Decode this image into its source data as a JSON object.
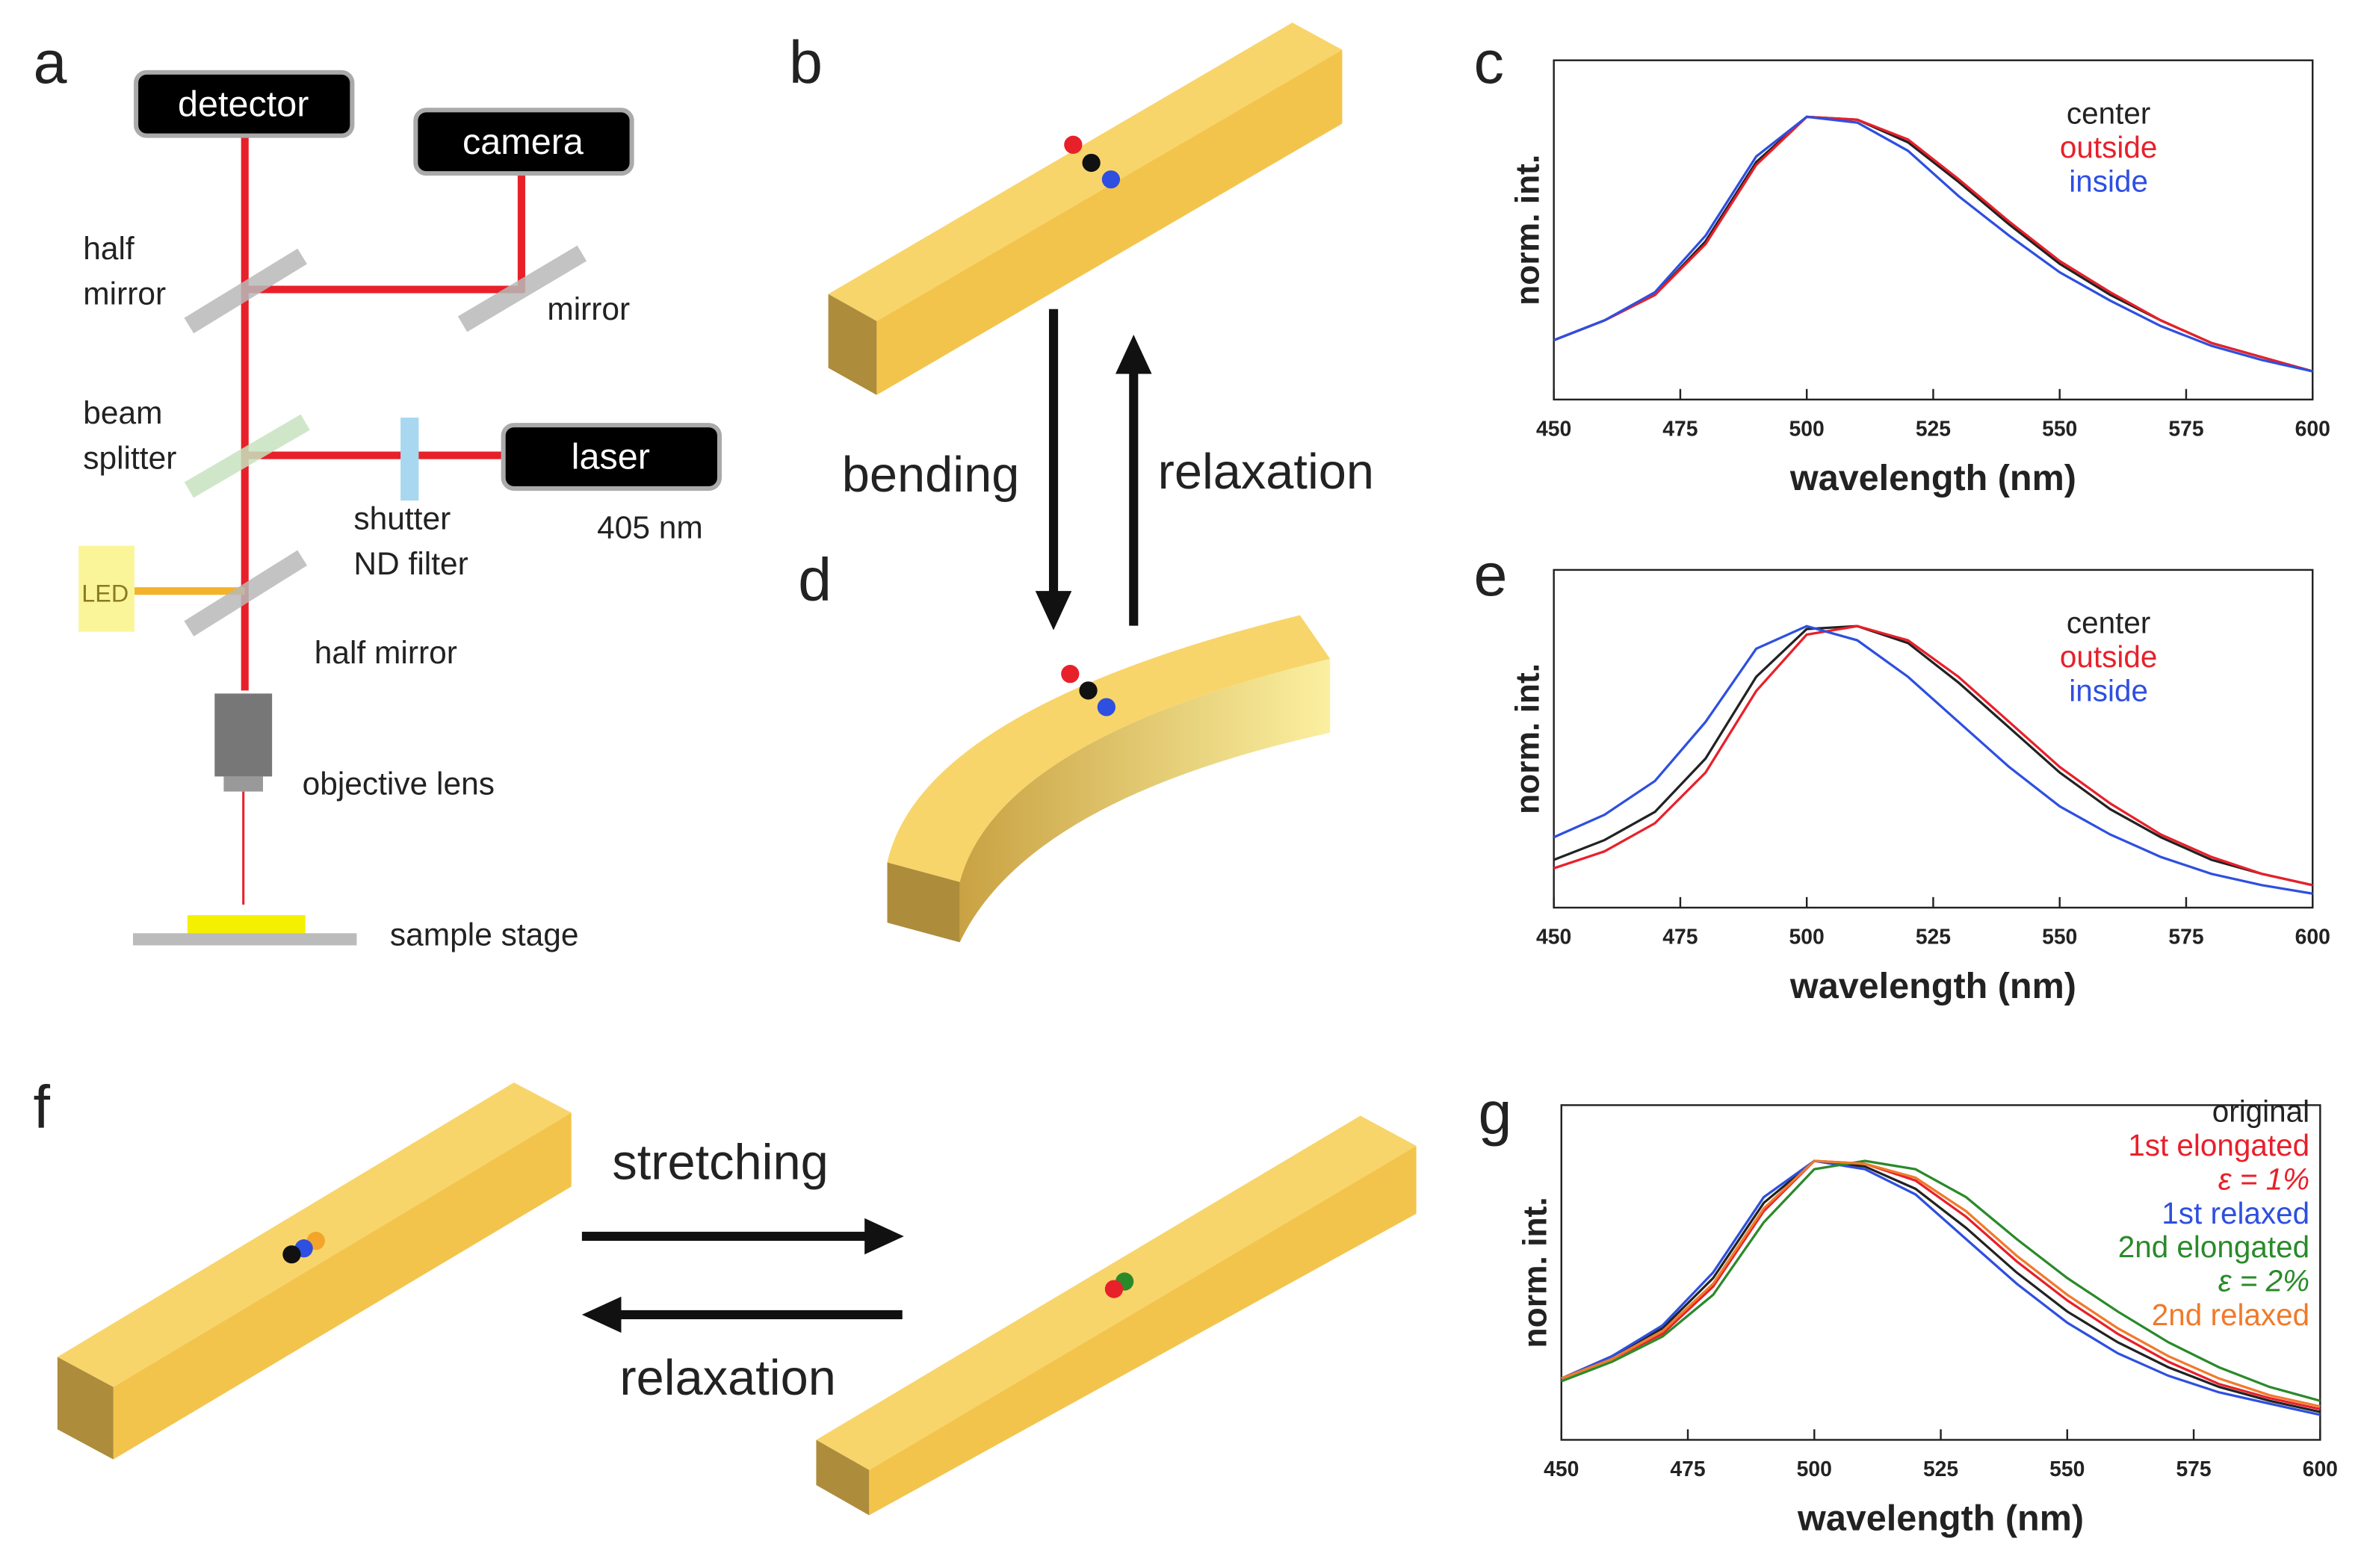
{
  "panel_letters": [
    "a",
    "b",
    "c",
    "d",
    "e",
    "f",
    "g"
  ],
  "panel_a": {
    "boxes": [
      "detector",
      "camera",
      "laser"
    ],
    "labels": [
      "half",
      "mirror",
      "mirror",
      "beam",
      "splitter",
      "shutter",
      "ND filter",
      "405 nm",
      "half mirror",
      "objective lens",
      "sample stage",
      "LED"
    ]
  },
  "panel_bd": {
    "arrows": [
      "bending",
      "relaxation"
    ]
  },
  "panel_f": {
    "arrows": [
      "stretching",
      "relaxation"
    ]
  },
  "chart_data": [
    {
      "type": "line",
      "x_label": "wavelength (nm)",
      "y_label": "norm. int.",
      "x": [
        450,
        460,
        470,
        480,
        490,
        500,
        510,
        520,
        530,
        540,
        550,
        560,
        570,
        580,
        590,
        600
      ],
      "xlim": [
        450,
        600
      ],
      "xticks": [
        450,
        475,
        500,
        525,
        550,
        575,
        600
      ],
      "ylim": [
        0,
        1.2
      ],
      "series": [
        {
          "name": "center",
          "color": "#222222",
          "values": [
            0.21,
            0.28,
            0.37,
            0.56,
            0.84,
            1.0,
            0.99,
            0.91,
            0.77,
            0.62,
            0.48,
            0.37,
            0.28,
            0.2,
            0.15,
            0.1
          ]
        },
        {
          "name": "outside",
          "color": "#e8202a",
          "values": [
            0.21,
            0.28,
            0.37,
            0.55,
            0.83,
            1.0,
            0.99,
            0.92,
            0.78,
            0.63,
            0.49,
            0.38,
            0.28,
            0.2,
            0.15,
            0.1
          ]
        },
        {
          "name": "inside",
          "color": "#2e4fe0",
          "values": [
            0.21,
            0.28,
            0.38,
            0.58,
            0.86,
            1.0,
            0.98,
            0.88,
            0.72,
            0.58,
            0.45,
            0.35,
            0.26,
            0.19,
            0.14,
            0.1
          ]
        }
      ]
    },
    {
      "type": "line",
      "x_label": "wavelength (nm)",
      "y_label": "norm. int.",
      "x": [
        450,
        460,
        470,
        480,
        490,
        500,
        510,
        520,
        530,
        540,
        550,
        560,
        570,
        580,
        590,
        600
      ],
      "xlim": [
        450,
        600
      ],
      "xticks": [
        450,
        475,
        500,
        525,
        550,
        575,
        600
      ],
      "ylim": [
        0,
        1.2
      ],
      "series": [
        {
          "name": "center",
          "color": "#222222",
          "values": [
            0.17,
            0.24,
            0.34,
            0.53,
            0.82,
            0.99,
            1.0,
            0.94,
            0.8,
            0.64,
            0.48,
            0.35,
            0.25,
            0.17,
            0.12,
            0.08
          ]
        },
        {
          "name": "outside",
          "color": "#e8202a",
          "values": [
            0.14,
            0.2,
            0.3,
            0.48,
            0.77,
            0.97,
            1.0,
            0.95,
            0.82,
            0.66,
            0.5,
            0.37,
            0.26,
            0.18,
            0.12,
            0.08
          ]
        },
        {
          "name": "inside",
          "color": "#2e4fe0",
          "values": [
            0.25,
            0.33,
            0.45,
            0.66,
            0.92,
            1.0,
            0.95,
            0.82,
            0.66,
            0.5,
            0.36,
            0.26,
            0.18,
            0.12,
            0.08,
            0.05
          ]
        }
      ]
    },
    {
      "type": "line",
      "x_label": "wavelength (nm)",
      "y_label": "norm. int.",
      "x": [
        450,
        460,
        470,
        480,
        490,
        500,
        510,
        520,
        530,
        540,
        550,
        560,
        570,
        580,
        590,
        600
      ],
      "xlim": [
        450,
        600
      ],
      "xticks": [
        450,
        475,
        500,
        525,
        550,
        575,
        600
      ],
      "ylim": [
        0,
        1.2
      ],
      "series": [
        {
          "name": "original",
          "color": "#222222",
          "values": [
            0.22,
            0.3,
            0.4,
            0.58,
            0.85,
            1.0,
            0.98,
            0.9,
            0.76,
            0.6,
            0.46,
            0.35,
            0.26,
            0.19,
            0.14,
            0.1
          ]
        },
        {
          "name": "1st elongated",
          "color": "#e8202a",
          "values": [
            0.22,
            0.29,
            0.38,
            0.55,
            0.82,
            1.0,
            0.99,
            0.93,
            0.8,
            0.64,
            0.5,
            0.38,
            0.28,
            0.2,
            0.15,
            0.11
          ]
        },
        {
          "name": "1st relaxed",
          "color": "#2e4fe0",
          "values": [
            0.22,
            0.3,
            0.41,
            0.6,
            0.87,
            1.0,
            0.97,
            0.88,
            0.72,
            0.56,
            0.42,
            0.31,
            0.23,
            0.17,
            0.13,
            0.09
          ]
        },
        {
          "name": "2nd elongated",
          "color": "#2a8a2a",
          "values": [
            0.21,
            0.28,
            0.37,
            0.52,
            0.78,
            0.97,
            1.0,
            0.97,
            0.87,
            0.72,
            0.58,
            0.46,
            0.35,
            0.26,
            0.19,
            0.14
          ]
        },
        {
          "name": "2nd relaxed",
          "color": "#f07a2a",
          "values": [
            0.22,
            0.29,
            0.39,
            0.56,
            0.83,
            1.0,
            0.99,
            0.94,
            0.82,
            0.66,
            0.52,
            0.4,
            0.3,
            0.22,
            0.16,
            0.12
          ]
        }
      ],
      "legend_notes": [
        "ε = 1%",
        "ε = 2%"
      ]
    }
  ]
}
